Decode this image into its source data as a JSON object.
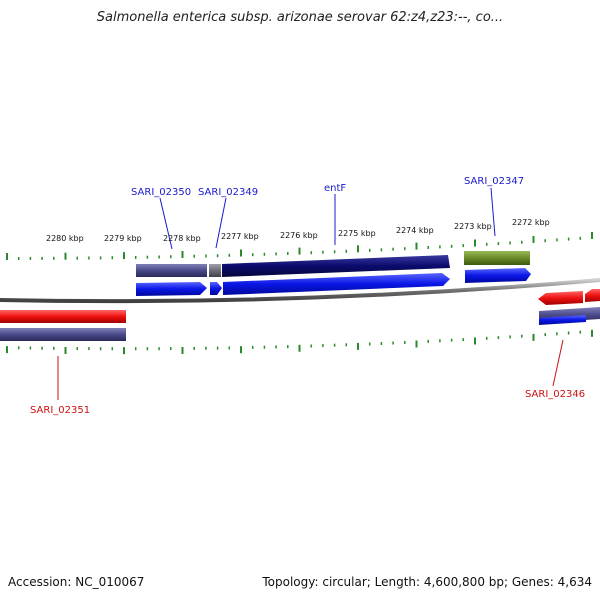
{
  "header": {
    "title": "Salmonella enterica subsp. arizonae serovar 62:z4,z23:--, co..."
  },
  "footer": {
    "accession": "Accession: NC_010067",
    "topology": "Topology: circular; Length: 4,600,800 bp; Genes: 4,634"
  },
  "colors": {
    "forward_gene": "#0a16e6",
    "reverse_gene": "#ee1111",
    "cds_dark": "#0b0b6e",
    "cds_slate": "#4a4a8a",
    "cds_gray": "#6b6b7a",
    "cds_olive": "#6a8a2a",
    "tick": "#2a8a2a",
    "label_forward": "#1a1acc",
    "label_reverse": "#cc1111"
  },
  "scale": {
    "tick_labels": [
      "2280 kbp",
      "2279 kbp",
      "2278 kbp",
      "2277 kbp",
      "2276 kbp",
      "2275 kbp",
      "2274 kbp",
      "2273 kbp",
      "2272 kbp"
    ]
  },
  "gene_labels": {
    "forward": [
      "SARI_02350",
      "SARI_02349",
      "entF",
      "SARI_02347"
    ],
    "reverse": [
      "SARI_02351",
      "SARI_02346"
    ]
  }
}
